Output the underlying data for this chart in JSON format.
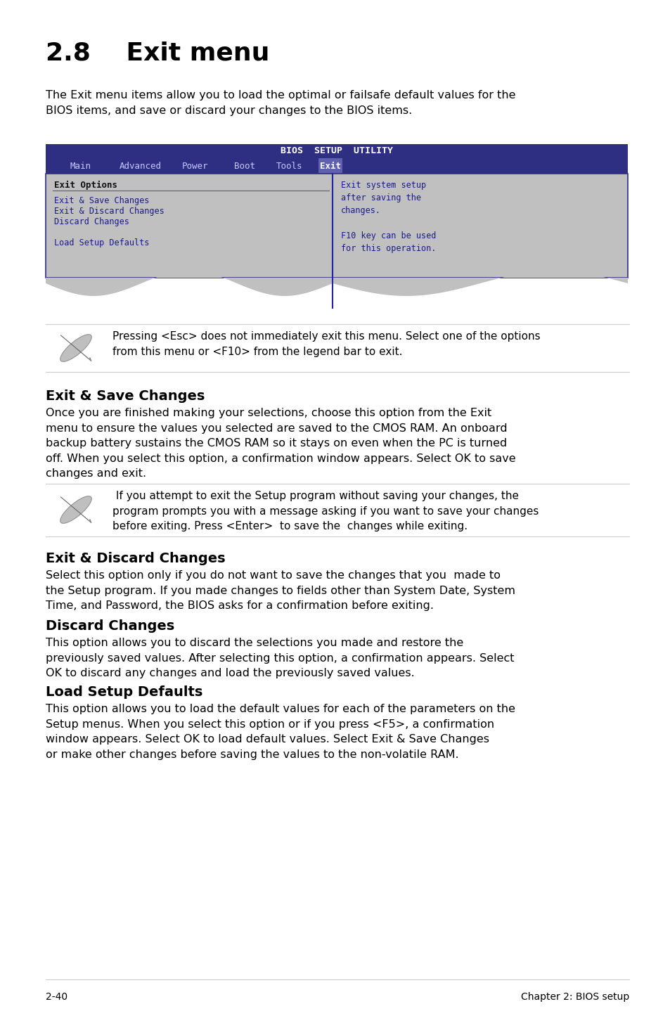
{
  "title": "2.8    Exit menu",
  "title_fontsize": 26,
  "body_fontsize": 11.5,
  "heading_fontsize": 14,
  "intro_text": "The Exit menu items allow you to load the optimal or failsafe default values for the\nBIOS items, and save or discard your changes to the BIOS items.",
  "bios_title": "BIOS  SETUP  UTILITY",
  "bios_menu_items": [
    "Main",
    "Advanced",
    "Power",
    "Boot",
    "Tools",
    "Exit"
  ],
  "bios_highlight": "Exit",
  "bios_left_header": "Exit Options",
  "bios_left_items": [
    "Exit & Save Changes",
    "Exit & Discard Changes",
    "Discard Changes",
    "",
    "Load Setup Defaults"
  ],
  "bios_right_text": "Exit system setup\nafter saving the\nchanges.\n\nF10 key can be used\nfor this operation.",
  "note1_text": "Pressing <Esc> does not immediately exit this menu. Select one of the options\nfrom this menu or <F10> from the legend bar to exit.",
  "section1_title": "Exit & Save Changes",
  "section1_body": "Once you are finished making your selections, choose this option from the Exit\nmenu to ensure the values you selected are saved to the CMOS RAM. An onboard\nbackup battery sustains the CMOS RAM so it stays on even when the PC is turned\noff. When you select this option, a confirmation window appears. Select ",
  "section1_bold": "OK",
  "section1_body2": " to save\nchanges and exit.",
  "note2_text": " If you attempt to exit the Setup program without saving your changes, the\nprogram prompts you with a message asking if you want to save your changes\nbefore exiting. Press <Enter>  to save the  changes while exiting.",
  "section2_title": "Exit & Discard Changes",
  "section2_body": "Select this option only if you do not want to save the changes that you  made to\nthe Setup program. If you made changes to fields other than System Date, System\nTime, and Password, the BIOS asks for a confirmation before exiting.",
  "section3_title": "Discard Changes",
  "section3_body": "This option allows you to discard the selections you made and restore the\npreviously saved values. After selecting this option, a confirmation appears. Select\n",
  "section3_bold": "OK",
  "section3_body2": " to discard any changes and load the previously saved values.",
  "section4_title": "Load Setup Defaults",
  "section4_body": "This option allows you to load the default values for each of the parameters on the\nSetup menus. When you select this option or if you press <F5>, a confirmation\nwindow appears. Select ",
  "section4_bold1": "OK",
  "section4_body2": " to load default values. Select ",
  "section4_bold2": "Exit & Save Changes",
  "section4_body3": "\nor make other changes before saving the values to the non-volatile RAM.",
  "footer_left": "2-40",
  "footer_right": "Chapter 2: BIOS setup",
  "bg_color": "#ffffff",
  "bios_header_bg": "#2e2e82",
  "bios_header_text": "#ffffff",
  "bios_body_bg": "#c0c0c0",
  "bios_menu_text": "#c8c8ff",
  "bios_item_color": "#1a1a8a",
  "text_color": "#000000",
  "line_color": "#cccccc"
}
